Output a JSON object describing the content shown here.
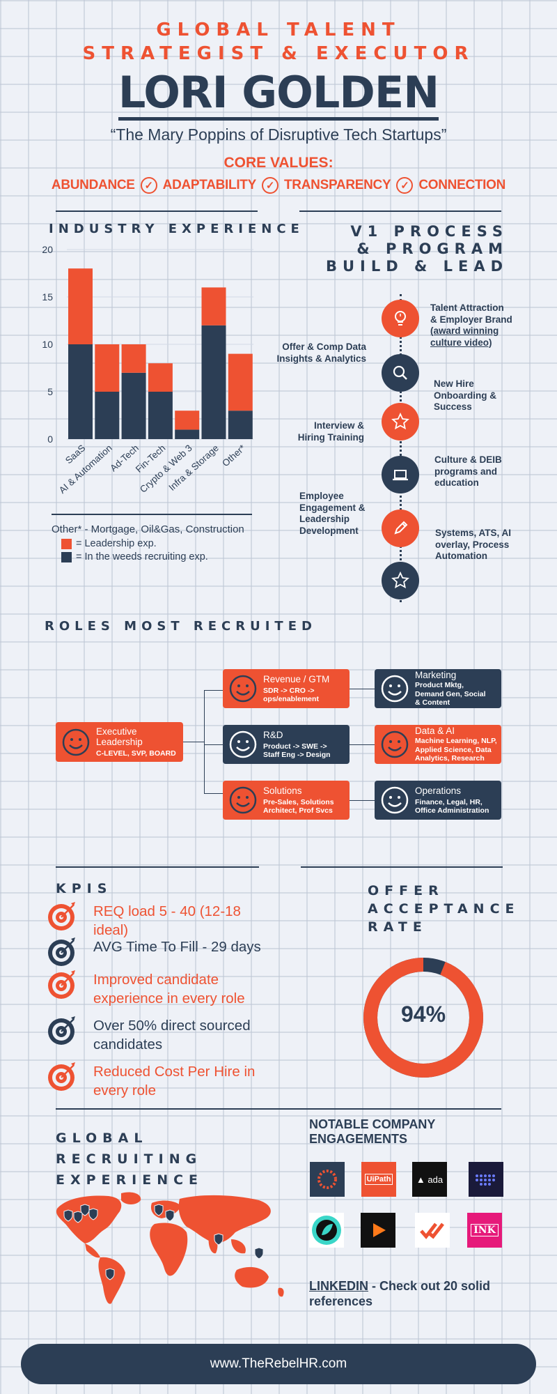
{
  "header": {
    "tagline_1": "GLOBAL TALENT",
    "tagline_2": "STRATEGIST & EXECUTOR",
    "name": "LORI GOLDEN",
    "quote": "“The Mary Poppins of Disruptive Tech Startups”",
    "core_values_label": "CORE VALUES:",
    "values": [
      "ABUNDANCE",
      "ADAPTABILITY",
      "TRANSPARENCY",
      "CONNECTION"
    ]
  },
  "industry": {
    "title": "INDUSTRY EXPERIENCE",
    "footnote": "Other* - Mortgage, Oil&Gas, Construction",
    "legend": [
      {
        "label": "= Leadership exp.",
        "color": "#ee5232"
      },
      {
        "label": "= In the weeds recruiting exp.",
        "color": "#2c3e55"
      }
    ]
  },
  "chart_data": {
    "type": "bar",
    "stacked": true,
    "categories": [
      "SaaS",
      "AI & Automation",
      "Ad-Tech",
      "Fin-Tech",
      "Crypto & Web 3",
      "Infra & Storage",
      "Other*"
    ],
    "series": [
      {
        "name": "In the weeds recruiting exp.",
        "color": "#2c3e55",
        "values": [
          10,
          5,
          7,
          5,
          1,
          12,
          3
        ]
      },
      {
        "name": "Leadership exp.",
        "color": "#ee5232",
        "values": [
          8,
          5,
          3,
          3,
          2,
          4,
          6
        ]
      }
    ],
    "ylim": [
      0,
      20
    ],
    "yticks": [
      0,
      5,
      10,
      15,
      20
    ],
    "grid": true
  },
  "process": {
    "title_1": "V1 PROCESS",
    "title_2": "& PROGRAM",
    "title_3": "BUILD & LEAD",
    "steps": [
      {
        "label_1": "Talent Attraction",
        "label_2": "& Employer Brand",
        "label_3": "(award winning",
        "label_4": "culture video)",
        "icon": "lightbulb-icon"
      },
      {
        "label_1": "Offer & Comp Data",
        "label_2": "Insights & Analytics",
        "icon": "search-icon"
      },
      {
        "label_1": "New Hire",
        "label_2": "Onboarding &",
        "label_3": "Success",
        "icon": "star-icon"
      },
      {
        "label_1": "Interview &",
        "label_2": "Hiring Training",
        "icon": "laptop-icon"
      },
      {
        "label_1": "Culture & DEIB",
        "label_2": "programs and",
        "label_3": "education",
        "icon": "pencil-icon"
      },
      {
        "label_1": "Employee",
        "label_2": "Engagement &",
        "label_3": "Leadership",
        "label_4": "Development",
        "icon": "star-icon"
      },
      {
        "label_1": "Systems, ATS, AI",
        "label_2": "overlay, Process",
        "label_3": "Automation"
      }
    ]
  },
  "roles": {
    "title": "ROLES MOST RECRUITED",
    "items": [
      {
        "title_1": "Executive",
        "title_2": "Leadership",
        "detail_1": "C-LEVEL, SVP, BOARD"
      },
      {
        "title_1": "Revenue / GTM",
        "detail_1": "SDR -> CRO ->",
        "detail_2": "ops/enablement"
      },
      {
        "title_1": "R&D",
        "detail_1": "Product -> SWE ->",
        "detail_2": "Staff Eng -> Design"
      },
      {
        "title_1": "Solutions",
        "detail_1": "Pre-Sales, Solutions",
        "detail_2": "Architect, Prof Svcs"
      },
      {
        "title_1": "Marketing",
        "detail_1": "Product Mktg,",
        "detail_2": "Demand Gen, Social",
        "detail_3": "& Content"
      },
      {
        "title_1": "Data & AI",
        "detail_1": "Machine Learning, NLP,",
        "detail_2": "Applied Science, Data",
        "detail_3": "Analytics, Research"
      },
      {
        "title_1": "Operations",
        "detail_1": "Finance, Legal, HR,",
        "detail_2": "Office Administration"
      }
    ]
  },
  "kpis": {
    "title": "KPIS",
    "items": [
      {
        "line_1": "REQ load 5 - 40 (12-18 ideal)",
        "color": "#ee5232"
      },
      {
        "line_1": "AVG Time To Fill - 29 days",
        "color": "#2c3e55"
      },
      {
        "line_1": "Improved candidate",
        "line_2": "experience in every role",
        "color": "#ee5232"
      },
      {
        "line_1": "Over 50% direct sourced",
        "line_2": "candidates",
        "color": "#2c3e55"
      },
      {
        "line_1": "Reduced Cost Per Hire in",
        "line_2": "every role",
        "color": "#ee5232"
      }
    ]
  },
  "offer": {
    "title_1": "OFFER",
    "title_2": "ACCEPTANCE",
    "title_3": "RATE",
    "value_text": "94%",
    "fraction": 0.94
  },
  "global": {
    "title_1": "GLOBAL",
    "title_2": "RECRUITING",
    "title_3": "EXPERIENCE"
  },
  "companies": {
    "title_1": "NOTABLE COMPANY",
    "title_2": "ENGAGEMENTS",
    "logos": [
      {
        "icon": "ring-dots-logo"
      },
      {
        "icon": "uipath-logo",
        "text": "UiPath"
      },
      {
        "icon": "ada-logo",
        "text": "ada"
      },
      {
        "icon": "dot-matrix-logo"
      },
      {
        "icon": "teal-circle-logo"
      },
      {
        "icon": "play-logo"
      },
      {
        "icon": "double-check-logo"
      },
      {
        "icon": "ink-logo",
        "text": "INK"
      }
    ],
    "linkedin_link": "LINKEDIN",
    "linkedin_rest": " - Check out 20 solid",
    "linkedin_line_2": "references"
  },
  "footer": {
    "url": "www.TheRebelHR.com"
  }
}
